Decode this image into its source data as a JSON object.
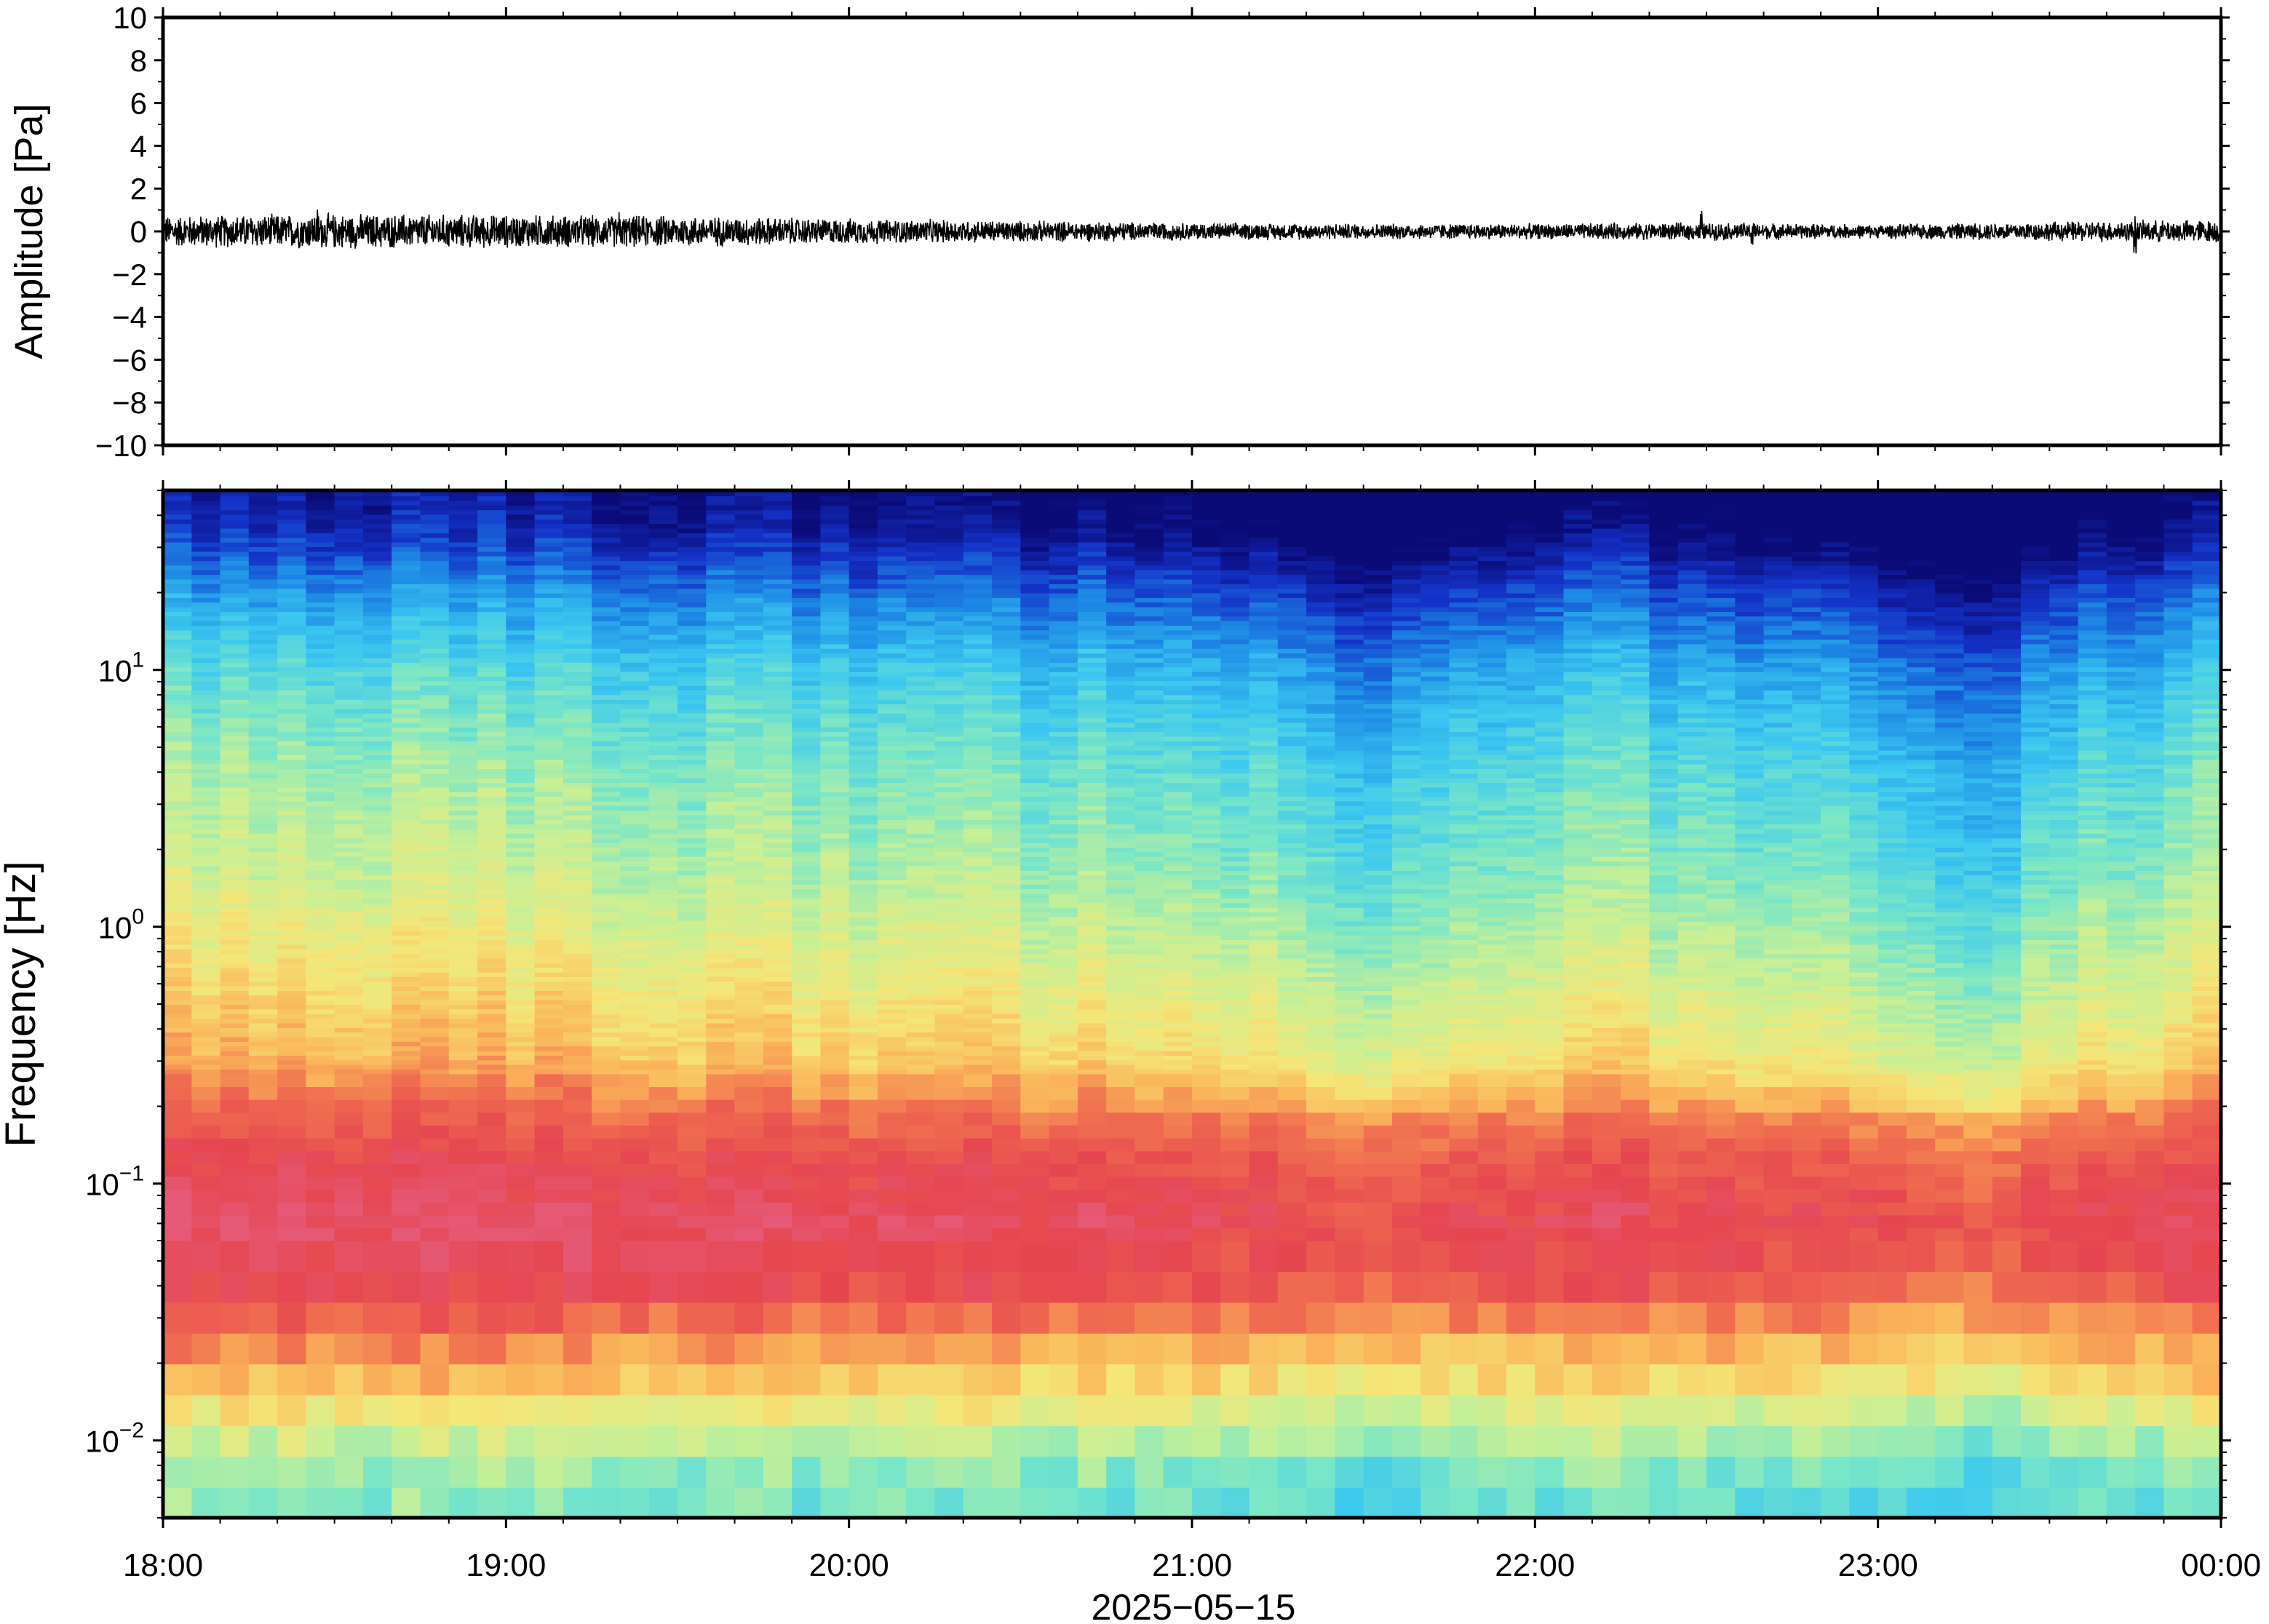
{
  "chart_data": [
    {
      "type": "line",
      "ylabel": "Amplitude [Pa]",
      "ylim": [
        -10,
        10
      ],
      "yticks": [
        -10,
        -8,
        -6,
        -4,
        -2,
        0,
        2,
        4,
        6,
        8,
        10
      ],
      "ytick_labels": [
        "−10",
        "−8",
        "−6",
        "−4",
        "−2",
        "0",
        "2",
        "4",
        "6",
        "8",
        "10"
      ],
      "xlim": [
        "18:00",
        "00:00"
      ],
      "series": [
        {
          "x_hours": [
            18.0,
            18.5,
            19.0,
            19.5,
            20.0,
            20.5,
            21.0,
            21.5,
            22.0,
            22.5,
            23.0,
            23.5,
            24.0
          ],
          "envelope_pa": [
            0.8,
            0.9,
            0.85,
            0.8,
            0.65,
            0.55,
            0.45,
            0.4,
            0.4,
            0.45,
            0.35,
            0.5,
            0.6
          ]
        }
      ],
      "spikes": [
        {
          "time": "18:27",
          "value": 1.3
        },
        {
          "time": "19:20",
          "value": 1.2
        },
        {
          "time": "22:29",
          "value": 1.2
        },
        {
          "time": "22:38",
          "value": 1.6
        },
        {
          "time": "23:45",
          "value": 1.3
        }
      ],
      "line_color": "#000000",
      "grid": false
    },
    {
      "type": "heatmap",
      "ylabel": "Frequency [Hz]",
      "yscale": "log",
      "ylim": [
        0.005,
        50
      ],
      "ytick_labels": [
        {
          "base": "10",
          "exp": "−2",
          "value": 0.01
        },
        {
          "base": "10",
          "exp": "−1",
          "value": 0.1
        },
        {
          "base": "10",
          "exp": "0",
          "value": 1
        },
        {
          "base": "10",
          "exp": "1",
          "value": 10
        }
      ],
      "xlabel": "2025−05−15",
      "xtick_labels": [
        "18:00",
        "19:00",
        "20:00",
        "21:00",
        "22:00",
        "23:00",
        "00:00"
      ],
      "colormap": "jet",
      "colormap_stops": [
        "#0b0b78",
        "#1432c8",
        "#1e8ce6",
        "#3cc8f0",
        "#78e6c8",
        "#c8f096",
        "#f5e678",
        "#fab45a",
        "#f06e50",
        "#e64650",
        "#e65a78"
      ],
      "relative_power_profile": {
        "freq_hz": [
          0.005,
          0.008,
          0.012,
          0.016,
          0.025,
          0.04,
          0.07,
          0.12,
          0.2,
          0.3,
          0.6,
          1.5,
          4,
          10,
          20,
          35,
          50
        ],
        "level": [
          0.4,
          0.45,
          0.55,
          0.65,
          0.76,
          0.9,
          0.96,
          0.9,
          0.8,
          0.68,
          0.6,
          0.5,
          0.43,
          0.33,
          0.2,
          0.06,
          0.02
        ]
      },
      "time_variation": {
        "x_hours": [
          18.0,
          18.5,
          19.0,
          19.5,
          20.0,
          20.5,
          21.0,
          21.5,
          21.75,
          22.0,
          22.5,
          23.0,
          23.25,
          23.5,
          23.75,
          24.0
        ],
        "offset": [
          0.02,
          0.03,
          0.02,
          0.0,
          -0.02,
          -0.03,
          -0.05,
          -0.1,
          -0.1,
          -0.05,
          -0.04,
          -0.08,
          -0.12,
          -0.1,
          -0.04,
          0.0
        ]
      }
    }
  ]
}
